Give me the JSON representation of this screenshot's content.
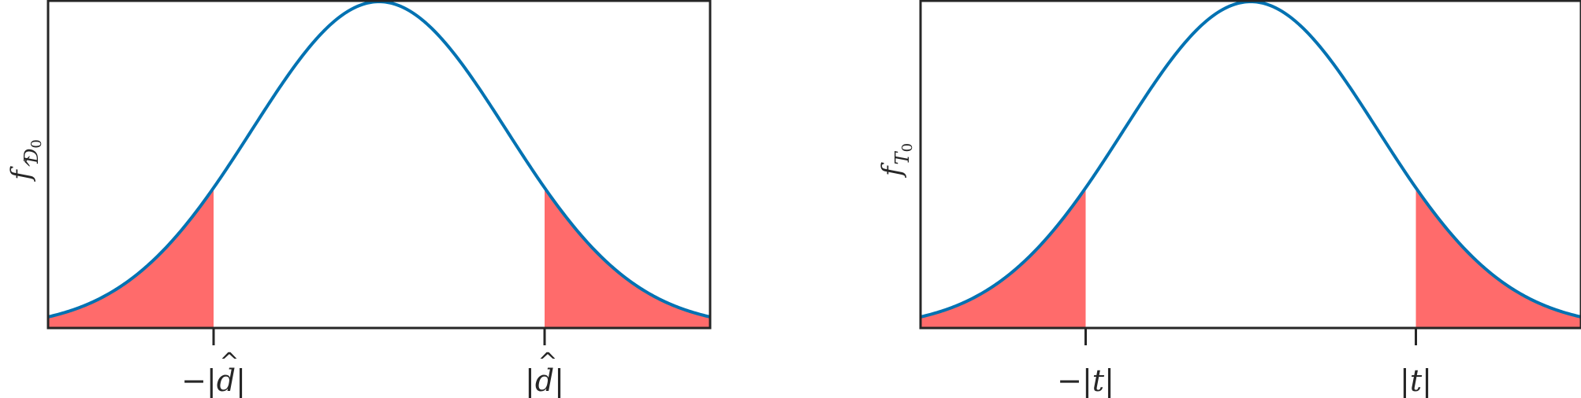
{
  "chart_data": [
    {
      "type": "area",
      "panel": "left",
      "ylabel": {
        "f": "f",
        "sub": "D",
        "sub_hat": "^",
        "sub_index": "0"
      },
      "xticks": [
        {
          "x": -1.3,
          "label": "−|d|",
          "math": {
            "prefix": "−|",
            "var": "d",
            "hat": "^",
            "suffix": "|"
          }
        },
        {
          "x": 1.3,
          "label": "|d|",
          "math": {
            "prefix": "|",
            "var": "d",
            "hat": "^",
            "suffix": "|"
          }
        }
      ],
      "xlim": [
        -2.6,
        2.6
      ],
      "ylim": [
        0,
        0.4
      ],
      "curve_color": "#0072b2",
      "fill_color": "#ff6b6b",
      "shaded_tails": [
        [
          -2.6,
          -1.3
        ],
        [
          1.3,
          2.6
        ]
      ],
      "grid": false
    },
    {
      "type": "area",
      "panel": "right",
      "ylabel": {
        "f": "f",
        "sub": "T",
        "sub_hat": "",
        "sub_index": "0"
      },
      "xticks": [
        {
          "x": -1.3,
          "label": "−|t|",
          "math": {
            "prefix": "−|",
            "var": "t",
            "hat": "",
            "suffix": "|"
          }
        },
        {
          "x": 1.3,
          "label": "|t|",
          "math": {
            "prefix": "|",
            "var": "t",
            "hat": "",
            "suffix": "|"
          }
        }
      ],
      "xlim": [
        -2.6,
        2.6
      ],
      "ylim": [
        0,
        0.4
      ],
      "curve_color": "#0072b2",
      "fill_color": "#ff6b6b",
      "shaded_tails": [
        [
          -2.6,
          -1.3
        ],
        [
          1.3,
          2.6
        ]
      ],
      "grid": false
    }
  ]
}
